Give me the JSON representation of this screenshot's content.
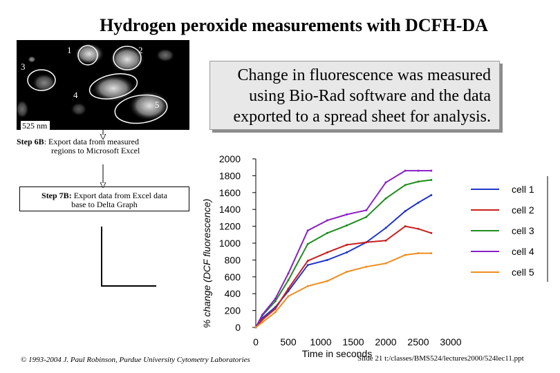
{
  "title": "Hydrogen peroxide measurements with DCFH-DA",
  "micrograph": {
    "cell_labels": [
      "1",
      "2",
      "3",
      "4",
      "5"
    ],
    "wavelength": "525 nm"
  },
  "callout": {
    "lines": [
      "Change in fluorescence was measured",
      "using Bio-Rad software and the data",
      "exported to a spread sheet for analysis."
    ]
  },
  "step6": {
    "bold": "Step 6B",
    "text": ": Export data from measured",
    "line2": "regions to Microsoft Excel"
  },
  "step7": {
    "bold": "Step 7B:",
    "text": " Export data from Excel data",
    "line2": "base to Delta Graph"
  },
  "footer": {
    "copyright": "© 1993-2004 J. Paul Robinson, Purdue University Cytometry Laboratories",
    "slide": "Slide 21  t:/classes/BMS524/lectures2000/524lec11.ppt"
  },
  "chart_data": {
    "type": "line",
    "xlabel": "Time in seconds",
    "ylabel": "% change (DCF fluorescence)",
    "xlim": [
      0,
      3000
    ],
    "ylim": [
      0,
      2000
    ],
    "xticks": [
      0,
      500,
      1000,
      1500,
      2000,
      2500,
      3000
    ],
    "yticks": [
      0,
      200,
      400,
      600,
      800,
      1000,
      1200,
      1400,
      1600,
      1800,
      2000
    ],
    "legend_position": "right",
    "series": [
      {
        "name": "cell 1",
        "color": "#1f35c8",
        "x": [
          0,
          100,
          300,
          500,
          800,
          1100,
          1400,
          1700,
          2000,
          2300,
          2500,
          2700
        ],
        "y": [
          0,
          110,
          240,
          430,
          740,
          800,
          890,
          1010,
          1180,
          1380,
          1480,
          1570
        ]
      },
      {
        "name": "cell 2",
        "color": "#c81e1e",
        "x": [
          0,
          100,
          300,
          500,
          800,
          1100,
          1400,
          1700,
          2000,
          2300,
          2500,
          2700
        ],
        "y": [
          0,
          90,
          220,
          460,
          790,
          890,
          980,
          1010,
          1030,
          1200,
          1170,
          1120
        ]
      },
      {
        "name": "cell 3",
        "color": "#1e8c1e",
        "x": [
          0,
          100,
          300,
          500,
          800,
          1100,
          1400,
          1700,
          2000,
          2300,
          2500,
          2700
        ],
        "y": [
          0,
          140,
          310,
          560,
          990,
          1120,
          1210,
          1310,
          1530,
          1690,
          1730,
          1750
        ]
      },
      {
        "name": "cell 4",
        "color": "#8a1ec8",
        "x": [
          0,
          100,
          300,
          500,
          800,
          1100,
          1400,
          1700,
          2000,
          2300,
          2500,
          2700
        ],
        "y": [
          0,
          150,
          340,
          640,
          1150,
          1270,
          1340,
          1390,
          1720,
          1860,
          1860,
          1860
        ]
      },
      {
        "name": "cell 5",
        "color": "#f08c1e",
        "x": [
          0,
          100,
          300,
          500,
          800,
          1100,
          1400,
          1700,
          2000,
          2300,
          2500,
          2700
        ],
        "y": [
          0,
          60,
          180,
          370,
          490,
          550,
          660,
          720,
          760,
          860,
          880,
          880
        ]
      }
    ]
  }
}
